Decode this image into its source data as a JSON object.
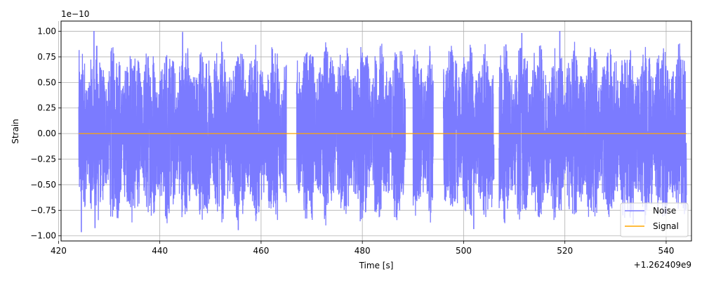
{
  "chart_data": {
    "type": "line",
    "title": "",
    "xlabel": "Time [s]",
    "ylabel": "Strain",
    "x_offset_label": "+1.262409e9",
    "y_scale_label": "1e−10",
    "xlim": [
      420.5,
      545
    ],
    "ylim": [
      -1.05,
      1.1
    ],
    "x_ticks": [
      420,
      440,
      460,
      480,
      500,
      520,
      540
    ],
    "x_tick_labels": [
      "420",
      "440",
      "460",
      "480",
      "500",
      "520",
      "540"
    ],
    "y_ticks": [
      -1.0,
      -0.75,
      -0.5,
      -0.25,
      0.0,
      0.25,
      0.5,
      0.75,
      1.0
    ],
    "y_tick_labels": [
      "−1.00",
      "−0.75",
      "−0.50",
      "−0.25",
      "0.00",
      "0.25",
      "0.50",
      "0.75",
      "1.00"
    ],
    "grid": true,
    "legend_position": "lower-right",
    "series": [
      {
        "name": "Noise",
        "color": "#7b7bff",
        "x_range": [
          424,
          544
        ],
        "description_values": {
          "gaps": [
            [
              465,
              467
            ],
            [
              488.5,
              490
            ],
            [
              494,
              496
            ],
            [
              506,
              507
            ]
          ],
          "peaks": [
            {
              "x": 427,
              "y": 1.0
            },
            {
              "x": 424.5,
              "y": -0.96
            },
            {
              "x": 427.2,
              "y": -0.92
            },
            {
              "x": 444.5,
              "y": 0.99
            },
            {
              "x": 455.5,
              "y": -0.94
            },
            {
              "x": 502,
              "y": -0.93
            },
            {
              "x": 495.8,
              "y": 0.97
            },
            {
              "x": 519,
              "y": 1.0
            },
            {
              "x": 511.5,
              "y": 0.98
            },
            {
              "x": 533.5,
              "y": -0.88
            }
          ]
        }
      },
      {
        "name": "Signal",
        "color": "#ffa500",
        "x_range": [
          424,
          544
        ],
        "constant_value": 0.0
      }
    ]
  }
}
